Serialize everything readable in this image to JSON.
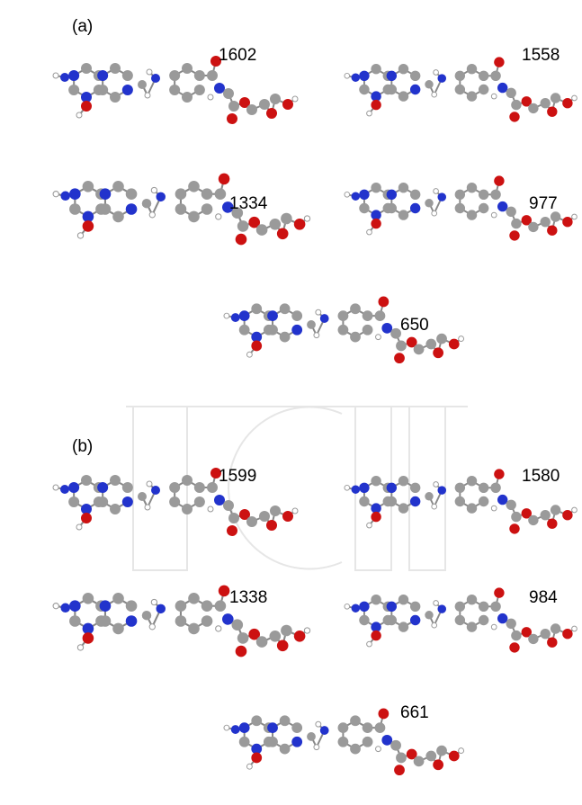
{
  "panels": [
    {
      "label": "(a)",
      "frequencies": [
        1602,
        1558,
        1334,
        977,
        650
      ]
    },
    {
      "label": "(b)",
      "frequencies": [
        1599,
        1580,
        1338,
        984,
        661
      ]
    }
  ]
}
